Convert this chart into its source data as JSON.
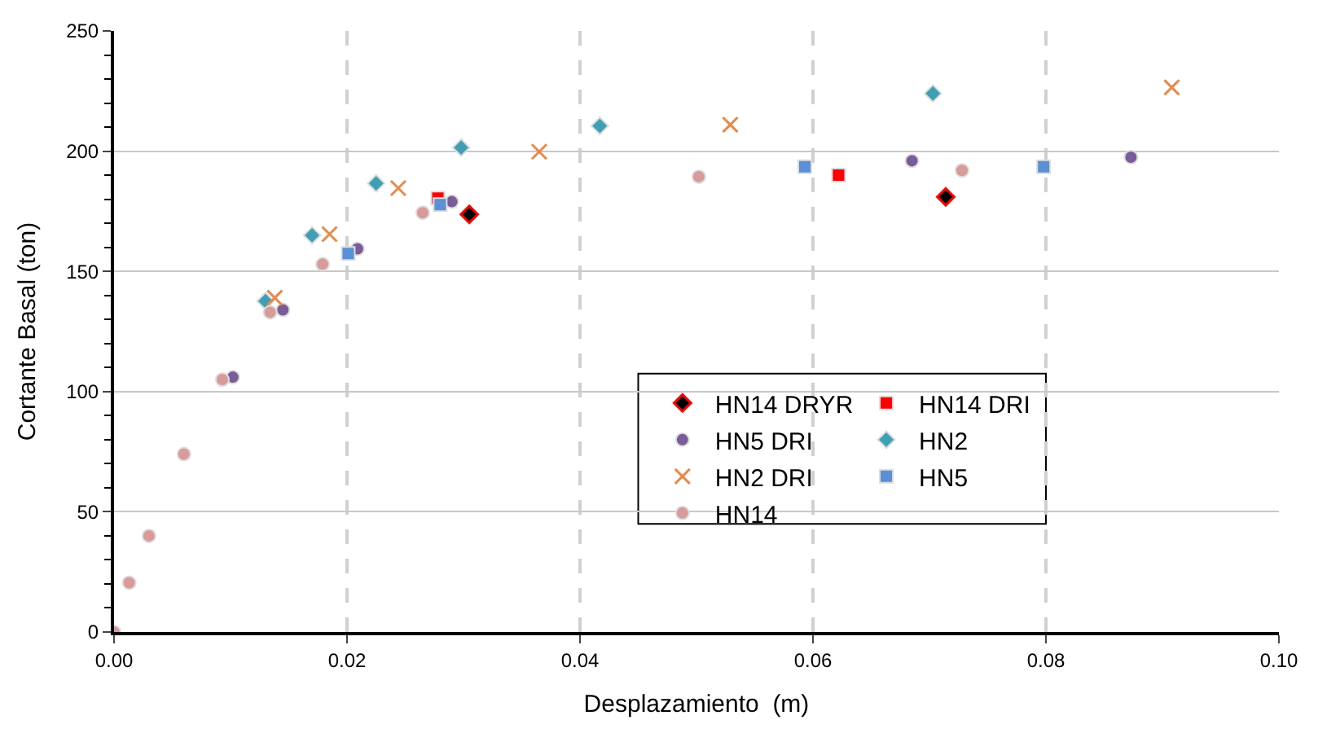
{
  "chart_data": {
    "type": "scatter",
    "xlabel": "Desplazamiento  (m)",
    "ylabel": "Cortante Basal (ton)",
    "xlim": [
      0,
      0.1
    ],
    "xticks": [
      {
        "value": 0,
        "label": "0.00"
      },
      {
        "value": 0.02,
        "label": "0.02"
      },
      {
        "value": 0.04,
        "label": "0.04"
      },
      {
        "value": 0.06,
        "label": "0.06"
      },
      {
        "value": 0.08,
        "label": "0.08"
      },
      {
        "value": 0.1,
        "label": "0.10"
      }
    ],
    "ylim": [
      0,
      250
    ],
    "yticks": [
      0,
      50,
      100,
      150,
      200,
      250
    ],
    "grid": true,
    "legend": "bottom right",
    "series": [
      {
        "name": "HN14 DRYR",
        "color": "#000000",
        "marker": "diamond",
        "x": [
          0.0305,
          0.0714
        ],
        "values": [
          173.7,
          181
        ]
      },
      {
        "name": "HN14 DRI",
        "color": "#ff0000",
        "marker": "square",
        "x": [
          0.0278,
          0.0622
        ],
        "values": [
          180.5,
          190
        ]
      },
      {
        "name": "HN5 DRI",
        "color": "#7a5c99",
        "marker": "circle",
        "x": [
          0.0102,
          0.0145,
          0.0209,
          0.029,
          0.0685,
          0.0873
        ],
        "values": [
          106,
          134,
          159.4,
          179,
          196,
          197.5
        ]
      },
      {
        "name": "HN2",
        "color": "#3fa0b5",
        "marker": "diamond",
        "x": [
          0.013,
          0.017,
          0.0225,
          0.0298,
          0.0417,
          0.0703
        ],
        "values": [
          137.6,
          165,
          186.6,
          201.5,
          210.5,
          224
        ]
      },
      {
        "name": "HN2 DRI",
        "color": "#e8894a",
        "marker": "cross",
        "x": [
          0.0138,
          0.0185,
          0.0244,
          0.0365,
          0.0529,
          0.0908
        ],
        "values": [
          139,
          165.5,
          184.6,
          199.8,
          211,
          226.5
        ]
      },
      {
        "name": "HN5",
        "color": "#5b8fd6",
        "marker": "square",
        "x": [
          0.0201,
          0.028,
          0.0593,
          0.0798
        ],
        "values": [
          157.4,
          177.8,
          193.5,
          193.5
        ]
      },
      {
        "name": "HN14",
        "color": "#d99a9a",
        "marker": "circle",
        "x": [
          0,
          0.0013,
          0.003,
          0.006,
          0.0093,
          0.0134,
          0.0179,
          0.0265,
          0.0502,
          0.0728
        ],
        "values": [
          0,
          20.5,
          40,
          74,
          105,
          133,
          153,
          174.4,
          189.4,
          192
        ]
      }
    ]
  }
}
